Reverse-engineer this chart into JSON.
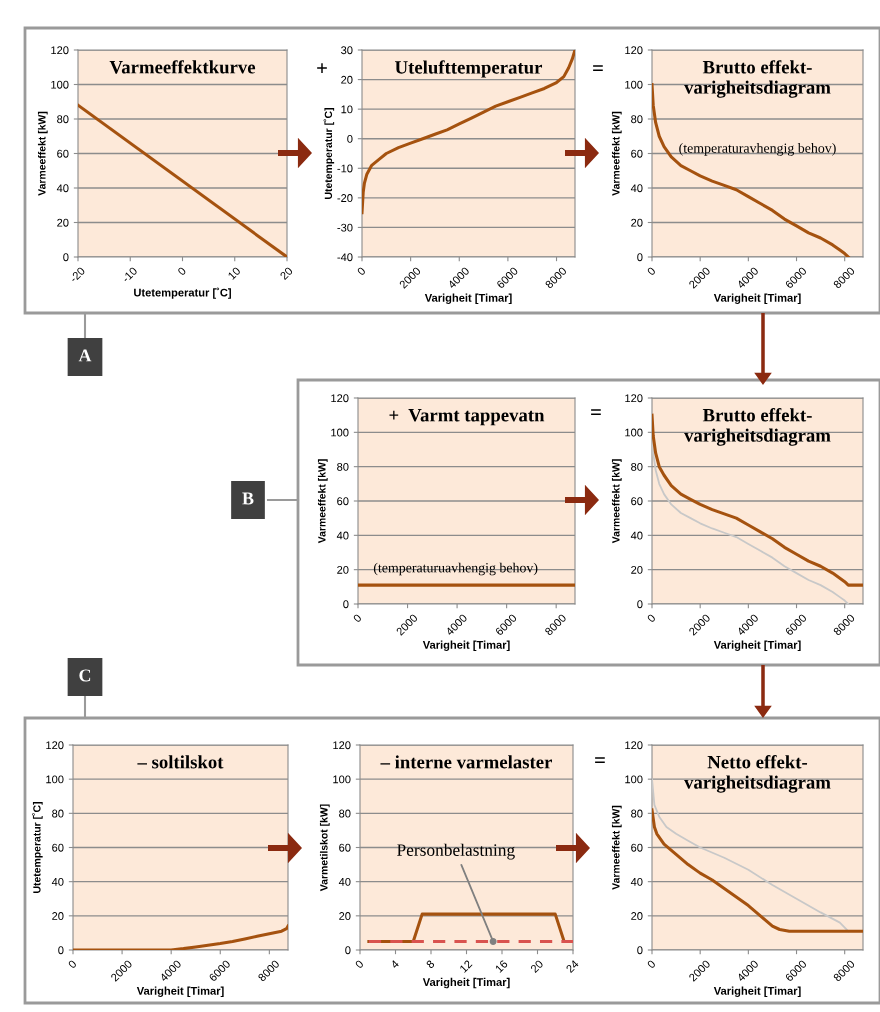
{
  "chart_data": [
    {
      "type": "line",
      "title": "Varmeeffektkurve",
      "xlabel": "Utetemperatur [˚C]",
      "ylabel": "Varmeeffekt [kW]",
      "xlim": [
        -20,
        20
      ],
      "xticks": [
        -20,
        -10,
        0,
        10,
        20
      ],
      "ylim": [
        0,
        120
      ],
      "yticks": [
        0,
        20,
        40,
        60,
        80,
        100,
        120
      ],
      "grid": "y",
      "annotations": [
        "+",
        "A"
      ],
      "series": [
        {
          "color": "#a5520f",
          "x": [
            -20,
            20
          ],
          "values": [
            88,
            0
          ]
        }
      ]
    },
    {
      "type": "line",
      "title": "Utelufttemperatur",
      "xlabel": "Varigheit [Timar]",
      "ylabel": "Utetemperatur [˚C]",
      "xlim": [
        0,
        8760
      ],
      "xticks": [
        0,
        2000,
        4000,
        6000,
        8000
      ],
      "ylim": [
        -40,
        30
      ],
      "yticks": [
        -40,
        -30,
        -20,
        -10,
        0,
        10,
        20,
        30
      ],
      "grid": "y",
      "annotations": [
        "="
      ],
      "series": [
        {
          "color": "#a5520f",
          "x": [
            0,
            50,
            100,
            200,
            400,
            700,
            1000,
            1500,
            2000,
            2500,
            3000,
            3500,
            4000,
            4500,
            5000,
            5500,
            6000,
            6500,
            7000,
            7500,
            8000,
            8300,
            8500,
            8650,
            8760
          ],
          "values": [
            -25,
            -18,
            -15,
            -12,
            -9,
            -7,
            -5,
            -3,
            -1.5,
            0,
            1.5,
            3,
            5,
            7,
            9,
            11,
            12.5,
            14,
            15.5,
            17,
            19,
            21,
            24,
            27,
            30
          ]
        }
      ]
    },
    {
      "type": "line",
      "title": "Brutto effekt-\nvarigheitsdiagram",
      "xlabel": "Varigheit [Timar]",
      "ylabel": "Varmeeffekt [kW]",
      "xlim": [
        0,
        8760
      ],
      "xticks": [
        0,
        2000,
        4000,
        6000,
        8000
      ],
      "ylim": [
        0,
        120
      ],
      "yticks": [
        0,
        20,
        40,
        60,
        80,
        100,
        120
      ],
      "grid": "y",
      "annotations": [
        "(temperaturavhengig behov)"
      ],
      "series": [
        {
          "color": "#a5520f",
          "x": [
            0,
            50,
            150,
            300,
            500,
            800,
            1200,
            1600,
            2000,
            2500,
            3000,
            3500,
            4000,
            4500,
            5000,
            5500,
            6000,
            6500,
            7000,
            7500,
            7800,
            8000,
            8150
          ],
          "values": [
            100,
            88,
            78,
            70,
            64,
            58,
            53,
            50,
            47,
            44,
            41.5,
            39,
            35,
            31,
            27,
            22,
            18,
            14,
            11,
            7,
            4,
            2,
            0
          ]
        }
      ]
    },
    {
      "type": "line",
      "title": "+  Varmt tappevatn",
      "xlabel": "Varigheit [Timar]",
      "ylabel": "Varmeeffekt [kW]",
      "xlim": [
        0,
        8760
      ],
      "xticks": [
        0,
        2000,
        4000,
        6000,
        8000
      ],
      "ylim": [
        0,
        120
      ],
      "yticks": [
        0,
        20,
        40,
        60,
        80,
        100,
        120
      ],
      "grid": "y",
      "annotations": [
        "=",
        "(temperaturuavhengig behov)",
        "B"
      ],
      "series": [
        {
          "color": "#a5520f",
          "x": [
            0,
            8760
          ],
          "values": [
            11,
            11
          ]
        }
      ]
    },
    {
      "type": "line",
      "title": "Brutto effekt-\nvarigheitsdiagram",
      "xlabel": "Varigheit [Timar]",
      "ylabel": "Varmeeffekt [kW]",
      "xlim": [
        0,
        8760
      ],
      "xticks": [
        0,
        2000,
        4000,
        6000,
        8000
      ],
      "ylim": [
        0,
        120
      ],
      "yticks": [
        0,
        20,
        40,
        60,
        80,
        100,
        120
      ],
      "grid": "y",
      "series": [
        {
          "color": "#c8c8c8",
          "x": [
            0,
            50,
            150,
            300,
            500,
            800,
            1200,
            1600,
            2000,
            2500,
            3000,
            3500,
            4000,
            4500,
            5000,
            5500,
            6000,
            6500,
            7000,
            7500,
            7800,
            8000,
            8150
          ],
          "values": [
            100,
            88,
            78,
            70,
            64,
            58,
            53,
            50,
            47,
            44,
            41.5,
            39,
            35,
            31,
            27,
            22,
            18,
            14,
            11,
            7,
            4,
            2,
            0
          ]
        },
        {
          "color": "#a5520f",
          "x": [
            0,
            50,
            150,
            300,
            500,
            800,
            1200,
            1600,
            2000,
            2500,
            3000,
            3500,
            4000,
            4500,
            5000,
            5500,
            6000,
            6500,
            7000,
            7500,
            7800,
            8000,
            8150,
            8760
          ],
          "values": [
            110,
            98,
            88,
            80,
            75,
            69,
            64,
            61,
            58,
            55,
            52.5,
            50,
            46,
            42,
            38,
            33,
            29,
            25,
            22,
            18,
            15,
            13,
            11,
            11
          ]
        }
      ]
    },
    {
      "type": "line",
      "title": "– soltilskot",
      "xlabel": "Varigheit [Timar]",
      "ylabel": "Utetemperatur [˚C]",
      "xlim": [
        0,
        8760
      ],
      "xticks": [
        0,
        2000,
        4000,
        6000,
        8000
      ],
      "ylim": [
        0,
        120
      ],
      "yticks": [
        0,
        20,
        40,
        60,
        80,
        100,
        120
      ],
      "grid": "y",
      "annotations": [
        "C"
      ],
      "series": [
        {
          "color": "#a5520f",
          "x": [
            0,
            4000,
            4500,
            5000,
            5500,
            6000,
            6500,
            7000,
            7500,
            8000,
            8500,
            8700,
            8760
          ],
          "values": [
            0,
            0,
            0.8,
            1.8,
            2.8,
            3.8,
            5,
            6.5,
            8,
            9.5,
            11,
            12.5,
            14
          ]
        }
      ]
    },
    {
      "type": "line",
      "title": "– interne varmelaster",
      "xlabel": "Varigheit [Timar]",
      "ylabel": "Varmetilskot [kW]",
      "xlim": [
        0,
        24
      ],
      "xticks": [
        0,
        4,
        8,
        12,
        16,
        20,
        24
      ],
      "ylim": [
        0,
        120
      ],
      "yticks": [
        0,
        20,
        40,
        60,
        80,
        100,
        120
      ],
      "grid": "y",
      "annotations": [
        "=",
        {
          "text": "Personbelastning",
          "x": 15,
          "y": 5
        }
      ],
      "series": [
        {
          "color": "#a5520f",
          "x": [
            1,
            6,
            7,
            22,
            23,
            24
          ],
          "values": [
            5,
            5,
            21,
            21,
            5,
            5
          ]
        },
        {
          "color": "#d9534f",
          "line_style": "dashed",
          "x": [
            1,
            24
          ],
          "values": [
            5,
            5
          ]
        }
      ]
    },
    {
      "type": "line",
      "title": "Netto effekt-\nvarigheitsdiagram",
      "xlabel": "Varigheit [Timar]",
      "ylabel": "Varmeeffekt [kW]",
      "xlim": [
        0,
        8760
      ],
      "xticks": [
        0,
        2000,
        4000,
        6000,
        8000
      ],
      "ylim": [
        0,
        120
      ],
      "yticks": [
        0,
        20,
        40,
        60,
        80,
        100,
        120
      ],
      "grid": "y",
      "series": [
        {
          "color": "#c8c8c8",
          "x": [
            0,
            100,
            300,
            600,
            1000,
            1500,
            2000,
            3000,
            4000,
            5000,
            6000,
            7000,
            7800,
            8150
          ],
          "values": [
            100,
            85,
            78,
            72,
            68,
            64,
            60,
            54,
            47,
            38,
            30,
            22,
            16,
            11
          ]
        },
        {
          "color": "#a5520f",
          "x": [
            0,
            100,
            200,
            500,
            1000,
            1500,
            2000,
            2500,
            3000,
            3500,
            4000,
            4500,
            5000,
            5300,
            5700,
            8760
          ],
          "values": [
            82,
            72,
            68,
            62,
            56,
            50,
            45,
            41,
            36,
            31,
            26,
            20,
            14,
            12,
            11,
            11
          ]
        }
      ]
    }
  ]
}
